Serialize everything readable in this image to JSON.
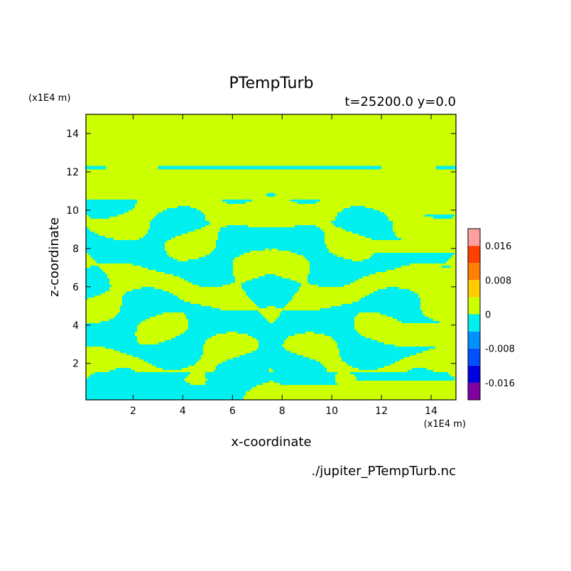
{
  "chart_data": {
    "type": "heatmap",
    "title": "PTempTurb",
    "subtitle": "t=25200.0 y=0.0",
    "xlabel": "x-coordinate",
    "ylabel": "z-coordinate",
    "x_scale_label": "(x1E4 m)",
    "y_scale_label": "(x1E4 m)",
    "source_label": "./jupiter_PTempTurb.nc",
    "xlim": [
      0.1,
      15
    ],
    "ylim": [
      0.1,
      15
    ],
    "x_ticks": [
      2,
      4,
      6,
      8,
      10,
      12,
      14
    ],
    "y_ticks": [
      2,
      4,
      6,
      8,
      10,
      12,
      14
    ],
    "x_tick_labels": [
      "2",
      "4",
      "6",
      "8",
      "10",
      "12",
      "14"
    ],
    "y_tick_labels": [
      "2",
      "4",
      "6",
      "8",
      "10",
      "12",
      "14"
    ],
    "background_value_color": "#ccff00",
    "colorbar": {
      "levels": [
        -0.02,
        -0.016,
        -0.012,
        -0.008,
        -0.004,
        0,
        0.004,
        0.008,
        0.012,
        0.016,
        0.02
      ],
      "colors": [
        "#8000a0",
        "#0000e0",
        "#0050ff",
        "#0090ff",
        "#00f0f0",
        "#ccff00",
        "#ffcc00",
        "#ff8000",
        "#ff4000",
        "#ffa0a0"
      ],
      "tick_values": [
        0.016,
        0.008,
        0,
        -0.008,
        -0.016
      ],
      "tick_labels": [
        "0.016",
        "0.008",
        "0",
        "-0.008",
        "-0.016"
      ]
    }
  }
}
